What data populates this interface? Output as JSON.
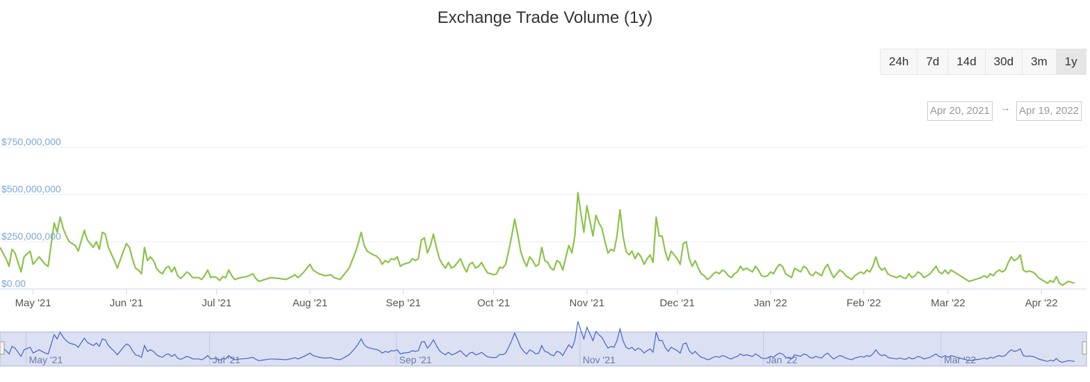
{
  "title": "Exchange Trade Volume (1y)",
  "range_buttons": [
    {
      "label": "24h",
      "active": false
    },
    {
      "label": "7d",
      "active": false
    },
    {
      "label": "14d",
      "active": false
    },
    {
      "label": "30d",
      "active": false
    },
    {
      "label": "3m",
      "active": false
    },
    {
      "label": "1y",
      "active": true
    }
  ],
  "date_range": {
    "from": "Apr 20, 2021",
    "arrow": "→",
    "to": "Apr 19, 2022"
  },
  "colors": {
    "line": "#8bc34a",
    "navigator_line": "#4263c4",
    "navigator_fill": "#dbe0f2",
    "axis_label": "#7aa6da"
  },
  "chart_data": {
    "type": "line",
    "x_range": [
      "Apr 20, 2021",
      "Apr 19, 2022"
    ],
    "ylim": [
      0,
      750000000
    ],
    "y_ticks": [
      {
        "value": 0,
        "label": "$0.00"
      },
      {
        "value": 250000000,
        "label": "$250,000,000"
      },
      {
        "value": 500000000,
        "label": "$500,000,000"
      },
      {
        "value": 750000000,
        "label": "$750,000,000"
      }
    ],
    "x_ticks": [
      {
        "day": 11,
        "label": "May '21"
      },
      {
        "day": 42,
        "label": "Jun '21"
      },
      {
        "day": 72,
        "label": "Jul '21"
      },
      {
        "day": 103,
        "label": "Aug '21"
      },
      {
        "day": 134,
        "label": "Sep '21"
      },
      {
        "day": 164,
        "label": "Oct '21"
      },
      {
        "day": 195,
        "label": "Nov '21"
      },
      {
        "day": 225,
        "label": "Dec '21"
      },
      {
        "day": 256,
        "label": "Jan '22"
      },
      {
        "day": 287,
        "label": "Feb '22"
      },
      {
        "day": 315,
        "label": "Mar '22"
      },
      {
        "day": 346,
        "label": "Apr '22"
      }
    ],
    "navigator_ticks": [
      {
        "day": 11,
        "label": "May '21"
      },
      {
        "day": 72,
        "label": "Jul '21"
      },
      {
        "day": 134,
        "label": "Sep '21"
      },
      {
        "day": 195,
        "label": "Nov '21"
      },
      {
        "day": 256,
        "label": "Jan '22"
      },
      {
        "day": 315,
        "label": "Mar '22"
      }
    ],
    "grid": true,
    "legend": "none",
    "points": [
      [
        0,
        220000000
      ],
      [
        2,
        160000000
      ],
      [
        3,
        120000000
      ],
      [
        4,
        210000000
      ],
      [
        5,
        190000000
      ],
      [
        7,
        90000000
      ],
      [
        8,
        170000000
      ],
      [
        10,
        200000000
      ],
      [
        11,
        130000000
      ],
      [
        13,
        170000000
      ],
      [
        15,
        130000000
      ],
      [
        16,
        120000000
      ],
      [
        18,
        350000000
      ],
      [
        19,
        300000000
      ],
      [
        20,
        380000000
      ],
      [
        21,
        320000000
      ],
      [
        22,
        280000000
      ],
      [
        23,
        250000000
      ],
      [
        25,
        230000000
      ],
      [
        26,
        200000000
      ],
      [
        28,
        310000000
      ],
      [
        29,
        260000000
      ],
      [
        31,
        220000000
      ],
      [
        32,
        250000000
      ],
      [
        33,
        210000000
      ],
      [
        34,
        300000000
      ],
      [
        35,
        290000000
      ],
      [
        36,
        220000000
      ],
      [
        38,
        150000000
      ],
      [
        39,
        110000000
      ],
      [
        41,
        200000000
      ],
      [
        42,
        240000000
      ],
      [
        43,
        220000000
      ],
      [
        44,
        160000000
      ],
      [
        45,
        110000000
      ],
      [
        46,
        100000000
      ],
      [
        47,
        80000000
      ],
      [
        48,
        220000000
      ],
      [
        49,
        150000000
      ],
      [
        50,
        170000000
      ],
      [
        51,
        150000000
      ],
      [
        52,
        110000000
      ],
      [
        53,
        90000000
      ],
      [
        54,
        80000000
      ],
      [
        55,
        110000000
      ],
      [
        56,
        120000000
      ],
      [
        57,
        90000000
      ],
      [
        58,
        115000000
      ],
      [
        59,
        70000000
      ],
      [
        60,
        55000000
      ],
      [
        61,
        70000000
      ],
      [
        62,
        90000000
      ],
      [
        63,
        80000000
      ],
      [
        64,
        60000000
      ],
      [
        66,
        60000000
      ],
      [
        67,
        50000000
      ],
      [
        68,
        70000000
      ],
      [
        69,
        100000000
      ],
      [
        70,
        60000000
      ],
      [
        71,
        65000000
      ],
      [
        72,
        60000000
      ],
      [
        73,
        45000000
      ],
      [
        74,
        65000000
      ],
      [
        75,
        60000000
      ],
      [
        76,
        100000000
      ],
      [
        77,
        70000000
      ],
      [
        78,
        50000000
      ],
      [
        80,
        60000000
      ],
      [
        82,
        65000000
      ],
      [
        84,
        80000000
      ],
      [
        85,
        55000000
      ],
      [
        86,
        40000000
      ],
      [
        88,
        50000000
      ],
      [
        90,
        60000000
      ],
      [
        93,
        55000000
      ],
      [
        95,
        50000000
      ],
      [
        97,
        65000000
      ],
      [
        98,
        75000000
      ],
      [
        99,
        60000000
      ],
      [
        101,
        90000000
      ],
      [
        102,
        110000000
      ],
      [
        103,
        130000000
      ],
      [
        104,
        100000000
      ],
      [
        105,
        90000000
      ],
      [
        106,
        80000000
      ],
      [
        108,
        70000000
      ],
      [
        110,
        75000000
      ],
      [
        111,
        60000000
      ],
      [
        112,
        55000000
      ],
      [
        113,
        50000000
      ],
      [
        114,
        70000000
      ],
      [
        115,
        90000000
      ],
      [
        116,
        110000000
      ],
      [
        117,
        150000000
      ],
      [
        118,
        190000000
      ],
      [
        119,
        240000000
      ],
      [
        120,
        300000000
      ],
      [
        121,
        230000000
      ],
      [
        122,
        200000000
      ],
      [
        123,
        190000000
      ],
      [
        124,
        180000000
      ],
      [
        125,
        175000000
      ],
      [
        126,
        160000000
      ],
      [
        127,
        130000000
      ],
      [
        128,
        150000000
      ],
      [
        129,
        140000000
      ],
      [
        130,
        160000000
      ],
      [
        131,
        155000000
      ],
      [
        132,
        170000000
      ],
      [
        133,
        120000000
      ],
      [
        134,
        130000000
      ],
      [
        136,
        140000000
      ],
      [
        137,
        160000000
      ],
      [
        138,
        150000000
      ],
      [
        139,
        160000000
      ],
      [
        140,
        260000000
      ],
      [
        141,
        270000000
      ],
      [
        142,
        190000000
      ],
      [
        143,
        230000000
      ],
      [
        144,
        290000000
      ],
      [
        145,
        220000000
      ],
      [
        146,
        160000000
      ],
      [
        147,
        130000000
      ],
      [
        148,
        110000000
      ],
      [
        149,
        140000000
      ],
      [
        150,
        110000000
      ],
      [
        151,
        120000000
      ],
      [
        152,
        140000000
      ],
      [
        153,
        160000000
      ],
      [
        154,
        120000000
      ],
      [
        155,
        90000000
      ],
      [
        156,
        130000000
      ],
      [
        157,
        140000000
      ],
      [
        158,
        110000000
      ],
      [
        159,
        120000000
      ],
      [
        160,
        140000000
      ],
      [
        161,
        110000000
      ],
      [
        162,
        85000000
      ],
      [
        163,
        80000000
      ],
      [
        164,
        75000000
      ],
      [
        165,
        80000000
      ],
      [
        166,
        115000000
      ],
      [
        167,
        110000000
      ],
      [
        168,
        130000000
      ],
      [
        169,
        200000000
      ],
      [
        170,
        280000000
      ],
      [
        171,
        370000000
      ],
      [
        172,
        290000000
      ],
      [
        173,
        200000000
      ],
      [
        174,
        150000000
      ],
      [
        175,
        120000000
      ],
      [
        176,
        170000000
      ],
      [
        177,
        150000000
      ],
      [
        178,
        120000000
      ],
      [
        179,
        130000000
      ],
      [
        180,
        220000000
      ],
      [
        181,
        150000000
      ],
      [
        182,
        140000000
      ],
      [
        183,
        110000000
      ],
      [
        184,
        100000000
      ],
      [
        185,
        150000000
      ],
      [
        186,
        140000000
      ],
      [
        187,
        100000000
      ],
      [
        188,
        170000000
      ],
      [
        189,
        230000000
      ],
      [
        190,
        190000000
      ],
      [
        191,
        280000000
      ],
      [
        192,
        510000000
      ],
      [
        193,
        400000000
      ],
      [
        194,
        300000000
      ],
      [
        195,
        440000000
      ],
      [
        196,
        360000000
      ],
      [
        197,
        280000000
      ],
      [
        198,
        390000000
      ],
      [
        199,
        350000000
      ],
      [
        200,
        320000000
      ],
      [
        201,
        250000000
      ],
      [
        202,
        190000000
      ],
      [
        203,
        210000000
      ],
      [
        204,
        200000000
      ],
      [
        205,
        280000000
      ],
      [
        206,
        420000000
      ],
      [
        207,
        280000000
      ],
      [
        208,
        200000000
      ],
      [
        209,
        180000000
      ],
      [
        210,
        200000000
      ],
      [
        211,
        160000000
      ],
      [
        212,
        190000000
      ],
      [
        213,
        170000000
      ],
      [
        214,
        130000000
      ],
      [
        215,
        160000000
      ],
      [
        216,
        180000000
      ],
      [
        217,
        140000000
      ],
      [
        218,
        380000000
      ],
      [
        219,
        280000000
      ],
      [
        220,
        280000000
      ],
      [
        221,
        200000000
      ],
      [
        222,
        150000000
      ],
      [
        223,
        200000000
      ],
      [
        224,
        180000000
      ],
      [
        225,
        160000000
      ],
      [
        226,
        130000000
      ],
      [
        227,
        240000000
      ],
      [
        228,
        250000000
      ],
      [
        229,
        160000000
      ],
      [
        230,
        120000000
      ],
      [
        231,
        150000000
      ],
      [
        232,
        110000000
      ],
      [
        233,
        80000000
      ],
      [
        234,
        70000000
      ],
      [
        235,
        50000000
      ],
      [
        236,
        60000000
      ],
      [
        237,
        80000000
      ],
      [
        238,
        90000000
      ],
      [
        239,
        80000000
      ],
      [
        240,
        100000000
      ],
      [
        241,
        90000000
      ],
      [
        242,
        70000000
      ],
      [
        243,
        60000000
      ],
      [
        244,
        80000000
      ],
      [
        245,
        90000000
      ],
      [
        246,
        120000000
      ],
      [
        247,
        100000000
      ],
      [
        248,
        110000000
      ],
      [
        249,
        100000000
      ],
      [
        250,
        90000000
      ],
      [
        251,
        120000000
      ],
      [
        252,
        100000000
      ],
      [
        253,
        70000000
      ],
      [
        254,
        65000000
      ],
      [
        255,
        70000000
      ],
      [
        256,
        90000000
      ],
      [
        257,
        80000000
      ],
      [
        258,
        110000000
      ],
      [
        259,
        130000000
      ],
      [
        260,
        120000000
      ],
      [
        261,
        80000000
      ],
      [
        262,
        70000000
      ],
      [
        263,
        60000000
      ],
      [
        264,
        110000000
      ],
      [
        265,
        100000000
      ],
      [
        266,
        90000000
      ],
      [
        267,
        120000000
      ],
      [
        268,
        110000000
      ],
      [
        269,
        80000000
      ],
      [
        270,
        70000000
      ],
      [
        271,
        90000000
      ],
      [
        272,
        80000000
      ],
      [
        273,
        70000000
      ],
      [
        274,
        110000000
      ],
      [
        275,
        130000000
      ],
      [
        276,
        90000000
      ],
      [
        277,
        60000000
      ],
      [
        278,
        80000000
      ],
      [
        279,
        100000000
      ],
      [
        280,
        90000000
      ],
      [
        281,
        70000000
      ],
      [
        282,
        60000000
      ],
      [
        283,
        50000000
      ],
      [
        284,
        70000000
      ],
      [
        285,
        80000000
      ],
      [
        286,
        90000000
      ],
      [
        287,
        80000000
      ],
      [
        288,
        100000000
      ],
      [
        289,
        90000000
      ],
      [
        290,
        120000000
      ],
      [
        291,
        170000000
      ],
      [
        292,
        120000000
      ],
      [
        293,
        100000000
      ],
      [
        294,
        110000000
      ],
      [
        295,
        80000000
      ],
      [
        296,
        70000000
      ],
      [
        297,
        65000000
      ],
      [
        298,
        60000000
      ],
      [
        299,
        70000000
      ],
      [
        300,
        60000000
      ],
      [
        301,
        55000000
      ],
      [
        302,
        80000000
      ],
      [
        303,
        60000000
      ],
      [
        304,
        70000000
      ],
      [
        305,
        90000000
      ],
      [
        306,
        80000000
      ],
      [
        307,
        60000000
      ],
      [
        308,
        70000000
      ],
      [
        309,
        80000000
      ],
      [
        310,
        100000000
      ],
      [
        311,
        120000000
      ],
      [
        312,
        90000000
      ],
      [
        313,
        80000000
      ],
      [
        314,
        100000000
      ],
      [
        315,
        80000000
      ],
      [
        316,
        100000000
      ],
      [
        317,
        90000000
      ],
      [
        318,
        80000000
      ],
      [
        319,
        70000000
      ],
      [
        320,
        60000000
      ],
      [
        321,
        50000000
      ],
      [
        322,
        40000000
      ],
      [
        323,
        45000000
      ],
      [
        324,
        50000000
      ],
      [
        325,
        55000000
      ],
      [
        326,
        60000000
      ],
      [
        327,
        70000000
      ],
      [
        328,
        60000000
      ],
      [
        329,
        80000000
      ],
      [
        330,
        70000000
      ],
      [
        331,
        90000000
      ],
      [
        332,
        100000000
      ],
      [
        333,
        90000000
      ],
      [
        334,
        100000000
      ],
      [
        335,
        140000000
      ],
      [
        336,
        170000000
      ],
      [
        337,
        150000000
      ],
      [
        338,
        160000000
      ],
      [
        339,
        180000000
      ],
      [
        340,
        100000000
      ],
      [
        341,
        90000000
      ],
      [
        342,
        95000000
      ],
      [
        343,
        90000000
      ],
      [
        344,
        80000000
      ],
      [
        345,
        60000000
      ],
      [
        346,
        50000000
      ],
      [
        347,
        40000000
      ],
      [
        348,
        30000000
      ],
      [
        349,
        45000000
      ],
      [
        350,
        35000000
      ],
      [
        351,
        65000000
      ],
      [
        352,
        30000000
      ],
      [
        353,
        20000000
      ],
      [
        354,
        30000000
      ],
      [
        355,
        40000000
      ],
      [
        356,
        35000000
      ],
      [
        357,
        30000000
      ]
    ]
  }
}
